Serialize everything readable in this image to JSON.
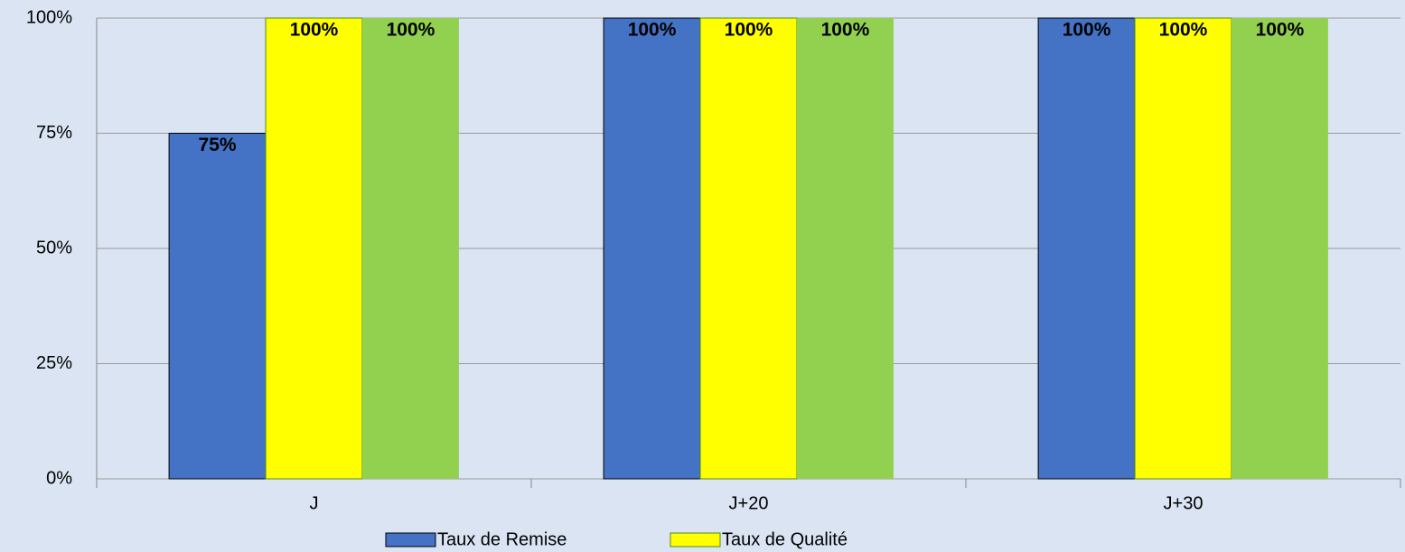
{
  "chart_data": {
    "type": "bar",
    "categories": [
      "J",
      "J+20",
      "J+30"
    ],
    "series": [
      {
        "name": "Taux de Remise",
        "color": "#4472c4",
        "values": [
          75,
          100,
          100
        ],
        "value_labels": [
          "75%",
          "100%",
          "100%"
        ]
      },
      {
        "name": "Taux de Qualité",
        "color": "#ffff00",
        "values": [
          100,
          100,
          100
        ],
        "value_labels": [
          "100%",
          "100%",
          "100%"
        ]
      },
      {
        "color": "#92d050",
        "values": [
          100,
          100,
          100
        ],
        "value_labels": [
          "100%",
          "100%",
          "100%"
        ]
      }
    ],
    "ylim": [
      0,
      100
    ],
    "yticks": [
      {
        "value": 0,
        "label": "0%"
      },
      {
        "value": 25,
        "label": "25%"
      },
      {
        "value": 50,
        "label": "50%"
      },
      {
        "value": 75,
        "label": "75%"
      },
      {
        "value": 100,
        "label": "100%"
      }
    ],
    "grid": true
  }
}
